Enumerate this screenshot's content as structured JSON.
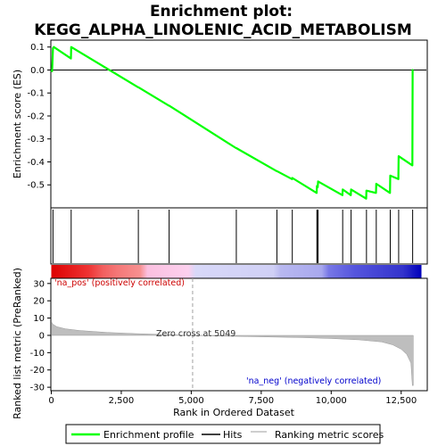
{
  "chart_data": {
    "type": "line",
    "title_line1": "Enrichment plot:",
    "title_line2": "KEGG_ALPHA_LINOLENIC_ACID_METABOLISM",
    "es_panel": {
      "ylabel": "Enrichment score (ES)",
      "ylim": [
        -0.6,
        0.13
      ],
      "yticks": [
        0.1,
        0.0,
        -0.1,
        -0.2,
        -0.3,
        -0.4,
        -0.5
      ],
      "ytick_labels": [
        "0.1",
        "0.0",
        "-0.1",
        "-0.2",
        "-0.3",
        "-0.4",
        "-0.5"
      ],
      "series": {
        "name": "Enrichment profile",
        "color": "#00ff00",
        "x": [
          0,
          30,
          60,
          90,
          700,
          710,
          3100,
          3110,
          4200,
          4210,
          6600,
          6610,
          8050,
          8060,
          8600,
          8610,
          9480,
          9490,
          9520,
          9530,
          10400,
          10410,
          10700,
          10710,
          11250,
          11260,
          11600,
          11610,
          12100,
          12110,
          12400,
          12410,
          12900,
          12910,
          12930
        ],
        "y": [
          0.0,
          -0.005,
          0.095,
          0.1,
          0.05,
          0.1,
          -0.075,
          -0.075,
          -0.155,
          -0.155,
          -0.34,
          -0.34,
          -0.44,
          -0.44,
          -0.475,
          -0.47,
          -0.535,
          -0.505,
          -0.51,
          -0.485,
          -0.545,
          -0.52,
          -0.545,
          -0.52,
          -0.56,
          -0.525,
          -0.535,
          -0.495,
          -0.535,
          -0.46,
          -0.475,
          -0.375,
          -0.415,
          0.0,
          0.0
        ]
      }
    },
    "hits": {
      "name": "Hits",
      "color": "#000000",
      "x": [
        60,
        710,
        3110,
        4210,
        6610,
        8060,
        8610,
        9490,
        9510,
        9530,
        10410,
        10710,
        11260,
        11610,
        12110,
        12410,
        12910
      ]
    },
    "rank_bar": {
      "positive_label": "'na_pos' (positively correlated)",
      "negative_label": "'na_neg' (negatively correlated)",
      "positive_color": "#cc0000",
      "negative_color": "#0000cc",
      "zero_cross": 5049
    },
    "metric_panel": {
      "ylabel": "Ranked list metric (PreRanked)",
      "ylim": [
        -32,
        33
      ],
      "yticks": [
        30,
        20,
        10,
        0,
        -10,
        -20,
        -30
      ],
      "ytick_labels": [
        "30",
        "20",
        "10",
        "0",
        "-10",
        "-20",
        "-30"
      ],
      "zero_cross_label": "Zero cross at 5049",
      "series": {
        "name": "Ranking metric scores",
        "color": "#bebebe",
        "x": [
          0,
          50,
          200,
          500,
          1000,
          2000,
          3000,
          4000,
          5049,
          6000,
          7000,
          8000,
          9000,
          10000,
          11000,
          11800,
          12200,
          12500,
          12700,
          12850,
          12900,
          12930
        ],
        "y": [
          8,
          6.5,
          5,
          3.8,
          2.8,
          1.7,
          1.0,
          0.5,
          0,
          -0.4,
          -0.7,
          -1.0,
          -1.3,
          -1.8,
          -2.6,
          -3.8,
          -5.5,
          -8,
          -11,
          -16,
          -29,
          -29
        ]
      }
    },
    "xaxis": {
      "xlabel": "Rank in Ordered Dataset",
      "xlim": [
        0,
        13400
      ],
      "xticks": [
        0,
        2500,
        5000,
        7500,
        10000,
        12500
      ],
      "xtick_labels": [
        "0",
        "2,500",
        "5,000",
        "7,500",
        "10,000",
        "12,500"
      ]
    },
    "legend": {
      "placement": "bottom",
      "entries": [
        {
          "label": "Enrichment profile",
          "color": "#00ff00"
        },
        {
          "label": "Hits",
          "color": "#000000"
        },
        {
          "label": "Ranking metric scores",
          "color": "#bebebe"
        }
      ]
    }
  }
}
